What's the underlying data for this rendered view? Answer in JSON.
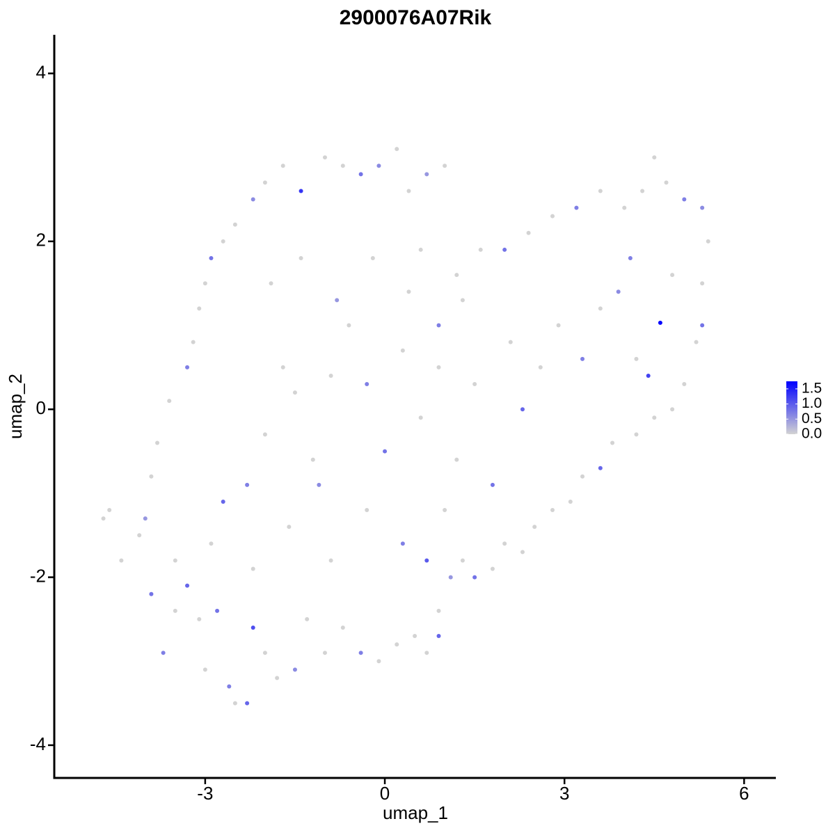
{
  "chart_data": {
    "type": "scatter",
    "title": "2900076A07Rik",
    "x_label": "umap_1",
    "y_label": "umap_2",
    "xlim": [
      -5.52,
      6.53
    ],
    "ylim": [
      -4.39,
      4.46
    ],
    "xticks": [
      -3,
      0,
      3,
      6
    ],
    "yticks": [
      -4,
      -2,
      0,
      2,
      4
    ],
    "color_low": "#d3d3d3",
    "color_high": "#0000ff",
    "color_lim": [
      0,
      1.75
    ],
    "color_ticks": [
      {
        "value": 0,
        "label": "0.0"
      },
      0.5,
      {
        "value": 1,
        "label": "1.0"
      },
      1.5
    ],
    "x": [
      -4.7,
      -4.6,
      -4.4,
      -4.1,
      -3.9,
      -3.7,
      -3.5,
      -3.3,
      -3.1,
      -3.0,
      -2.8,
      -2.6,
      -2.5,
      -2.3,
      -2.2,
      -2.0,
      -1.8,
      -1.5,
      -1.3,
      -1.0,
      -0.7,
      -0.4,
      -0.1,
      0.2,
      0.5,
      0.7,
      0.9,
      0.9,
      1.1,
      1.3,
      1.5,
      1.8,
      2.0,
      2.3,
      2.5,
      2.8,
      3.1,
      3.3,
      3.6,
      3.8,
      4.2,
      4.5,
      4.8,
      5.0,
      5.2,
      5.3,
      5.3,
      5.4,
      5.3,
      5.0,
      4.7,
      4.5,
      4.3,
      4.0,
      3.6,
      3.2,
      2.8,
      2.4,
      2.0,
      1.6,
      1.2,
      1.0,
      0.7,
      0.4,
      0.2,
      -0.1,
      -0.4,
      -0.7,
      -1.0,
      -1.4,
      -1.7,
      -2.0,
      -2.2,
      -2.5,
      -2.7,
      -2.9,
      -3.0,
      -3.1,
      -3.2,
      -3.3,
      -3.6,
      -3.8,
      -3.9,
      -4.0,
      -2.7,
      -2.3,
      -2.0,
      -1.7,
      -1.5,
      -1.2,
      -0.9,
      -0.6,
      -0.3,
      0.0,
      0.3,
      0.6,
      0.9,
      1.2,
      1.5,
      1.8,
      2.1,
      2.3,
      2.6,
      2.9,
      3.3,
      3.6,
      3.9,
      4.2,
      4.4,
      4.6,
      4.8,
      4.1,
      -1.9,
      -1.4,
      -0.8,
      -0.2,
      0.4,
      0.9,
      1.3,
      -2.2,
      -1.6,
      -0.9,
      -0.3,
      0.3,
      0.7,
      -3.5,
      -2.9,
      1.0,
      -1.1,
      0.6
    ],
    "y": [
      -1.3,
      -1.2,
      -1.8,
      -1.5,
      -2.2,
      -2.9,
      -2.4,
      -2.1,
      -2.5,
      -3.1,
      -2.4,
      -3.3,
      -3.5,
      -3.5,
      -2.6,
      -2.9,
      -3.2,
      -3.1,
      -2.5,
      -2.9,
      -2.6,
      -2.9,
      -3.0,
      -2.8,
      -2.7,
      -2.9,
      -2.7,
      -2.4,
      -2.0,
      -1.8,
      -2.0,
      -1.9,
      -1.6,
      -1.7,
      -1.4,
      -1.2,
      -1.1,
      -0.8,
      -0.7,
      -0.4,
      -0.3,
      -0.1,
      0.0,
      0.3,
      0.8,
      1.0,
      1.5,
      2.0,
      2.4,
      2.5,
      2.7,
      3.0,
      2.6,
      2.4,
      2.6,
      2.4,
      2.3,
      2.1,
      1.9,
      1.9,
      1.6,
      2.9,
      2.8,
      2.6,
      3.1,
      2.9,
      2.8,
      2.9,
      3.0,
      2.6,
      2.9,
      2.7,
      2.5,
      2.2,
      2.0,
      1.8,
      1.5,
      1.2,
      0.8,
      0.5,
      0.1,
      -0.4,
      -0.8,
      -1.3,
      -1.1,
      -0.9,
      -0.3,
      0.5,
      0.2,
      -0.6,
      0.4,
      1.0,
      0.3,
      -0.5,
      0.7,
      -0.1,
      0.5,
      -0.6,
      0.3,
      -0.9,
      0.8,
      0.0,
      0.5,
      1.0,
      0.6,
      1.2,
      1.4,
      0.6,
      0.4,
      1.03,
      1.6,
      1.8,
      1.5,
      1.8,
      1.3,
      1.8,
      1.4,
      1.0,
      1.3,
      -1.9,
      -1.4,
      -1.8,
      -1.2,
      -1.6,
      -1.8,
      -1.8,
      -1.6,
      -1.2,
      -0.9,
      1.9
    ],
    "values": [
      0,
      0,
      0,
      0,
      0.8,
      0.7,
      0,
      0.9,
      0,
      0,
      0.8,
      0.7,
      0,
      0.9,
      1.1,
      0,
      0,
      0.6,
      0,
      0,
      0,
      0.7,
      0,
      0,
      0,
      0,
      0.9,
      0,
      0.5,
      0,
      0.8,
      0,
      0,
      0,
      0,
      0,
      0,
      0,
      0.9,
      0,
      0,
      0,
      0,
      0,
      0,
      0.8,
      0,
      0,
      0.6,
      0.7,
      0,
      0,
      0,
      0,
      0,
      0.7,
      0,
      0,
      0.8,
      0,
      0,
      0,
      0.5,
      0,
      0,
      0.6,
      0.8,
      0,
      0,
      1.3,
      0,
      0,
      0.6,
      0,
      0,
      0.8,
      0,
      0,
      0,
      0.7,
      0,
      0,
      0,
      0.5,
      0.9,
      0.7,
      0,
      0,
      0,
      0,
      0,
      0,
      0.7,
      0.8,
      0,
      0,
      0,
      0,
      0,
      0.8,
      0,
      0.9,
      0,
      0,
      0.7,
      0,
      0.6,
      0,
      1.2,
      1.7,
      0,
      0.7,
      0,
      0,
      0.5,
      0,
      0,
      0.7,
      0,
      0,
      0,
      0,
      0,
      0.7,
      1.0,
      0,
      0,
      0,
      0.6,
      0
    ]
  }
}
